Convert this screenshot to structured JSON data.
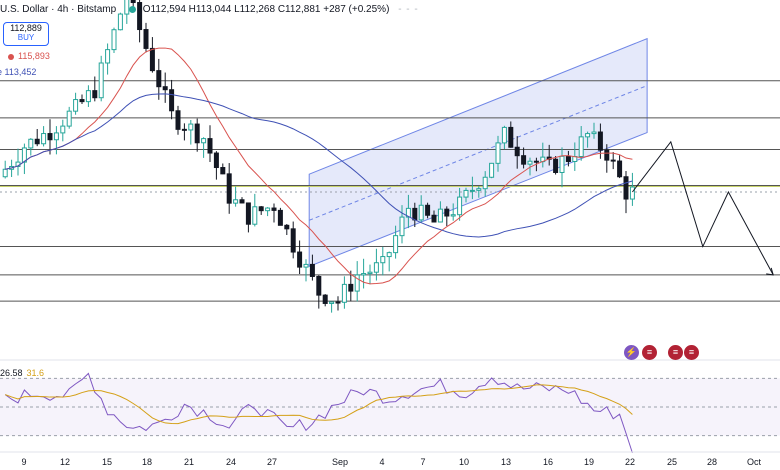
{
  "header": {
    "symbol": "U.S. Dollar · 4h · Bitstamp",
    "ohlc": "O112,594 H113,044 L112,268 C112,881 +287 (+0.25%)"
  },
  "buy_box": {
    "price": "112,889",
    "label": "BUY"
  },
  "ma_labels": {
    "ma1": "115,893",
    "ma2": "e 113,452"
  },
  "rsi_labels": {
    "value1": "26.58",
    "value2": "31.6"
  },
  "event_icons": [
    "lightning-flag-event",
    "us-flag-event",
    "us-flag-event",
    "us-flag-event"
  ],
  "colors": {
    "up": "#26a69a",
    "down": "#131722",
    "ma_red": "#d9534f",
    "ma_blue": "#3f51b5",
    "channel": "#6f86e6",
    "rsi": "#7e57c2",
    "rsi_ma": "#d4a017",
    "level": "#555555"
  },
  "chart_data": {
    "type": "candlestick",
    "price_axis": {
      "visible": false,
      "range": [
        106000,
        122500
      ]
    },
    "x_ticks": [
      "9",
      "12",
      "15",
      "18",
      "21",
      "24",
      "27",
      "Sep",
      "4",
      "7",
      "10",
      "13",
      "16",
      "19",
      "22",
      "25",
      "28",
      "Oct"
    ],
    "horizontal_levels": [
      118800,
      117100,
      115650,
      114000,
      111200,
      109900,
      108700
    ],
    "candle_price_path": [
      [
        0,
        114400
      ],
      [
        4,
        115800
      ],
      [
        8,
        116500
      ],
      [
        12,
        117500
      ],
      [
        15,
        118400
      ],
      [
        18,
        121000
      ],
      [
        20,
        122800
      ],
      [
        24,
        119500
      ],
      [
        27,
        117200
      ],
      [
        32,
        116200
      ],
      [
        36,
        113500
      ],
      [
        39,
        112600
      ],
      [
        43,
        113100
      ],
      [
        47,
        110700
      ],
      [
        50,
        109100
      ],
      [
        53,
        108700
      ],
      [
        56,
        109900
      ],
      [
        60,
        110300
      ],
      [
        64,
        113000
      ],
      [
        68,
        112300
      ],
      [
        72,
        113100
      ],
      [
        76,
        114600
      ],
      [
        79,
        116300
      ],
      [
        82,
        115400
      ],
      [
        86,
        114800
      ],
      [
        89,
        115300
      ],
      [
        92,
        116300
      ],
      [
        95,
        115500
      ],
      [
        98,
        113700
      ]
    ],
    "channel_upper": [
      [
        30,
        112400
      ],
      [
        98,
        120400
      ]
    ],
    "channel_lower": [
      [
        30,
        108200
      ],
      [
        98,
        116100
      ]
    ],
    "channel_mid": [
      [
        30,
        110300
      ],
      [
        98,
        118250
      ]
    ],
    "projection": [
      [
        98,
        113700
      ],
      [
        104,
        116000
      ],
      [
        109,
        111200
      ],
      [
        113,
        113700
      ],
      [
        120,
        109900
      ]
    ],
    "rsi_levels": [
      70,
      50,
      30
    ],
    "rsi_path": [
      [
        0,
        55
      ],
      [
        5,
        60
      ],
      [
        10,
        58
      ],
      [
        13,
        73
      ],
      [
        16,
        48
      ],
      [
        20,
        35
      ],
      [
        24,
        38
      ],
      [
        28,
        52
      ],
      [
        32,
        45
      ],
      [
        35,
        36
      ],
      [
        39,
        52
      ],
      [
        44,
        34
      ],
      [
        48,
        40
      ],
      [
        52,
        53
      ],
      [
        56,
        62
      ],
      [
        60,
        56
      ],
      [
        64,
        62
      ],
      [
        68,
        65
      ],
      [
        72,
        60
      ],
      [
        76,
        72
      ],
      [
        80,
        63
      ],
      [
        84,
        63
      ],
      [
        88,
        62
      ],
      [
        92,
        48
      ],
      [
        96,
        45
      ],
      [
        98,
        20
      ]
    ]
  }
}
